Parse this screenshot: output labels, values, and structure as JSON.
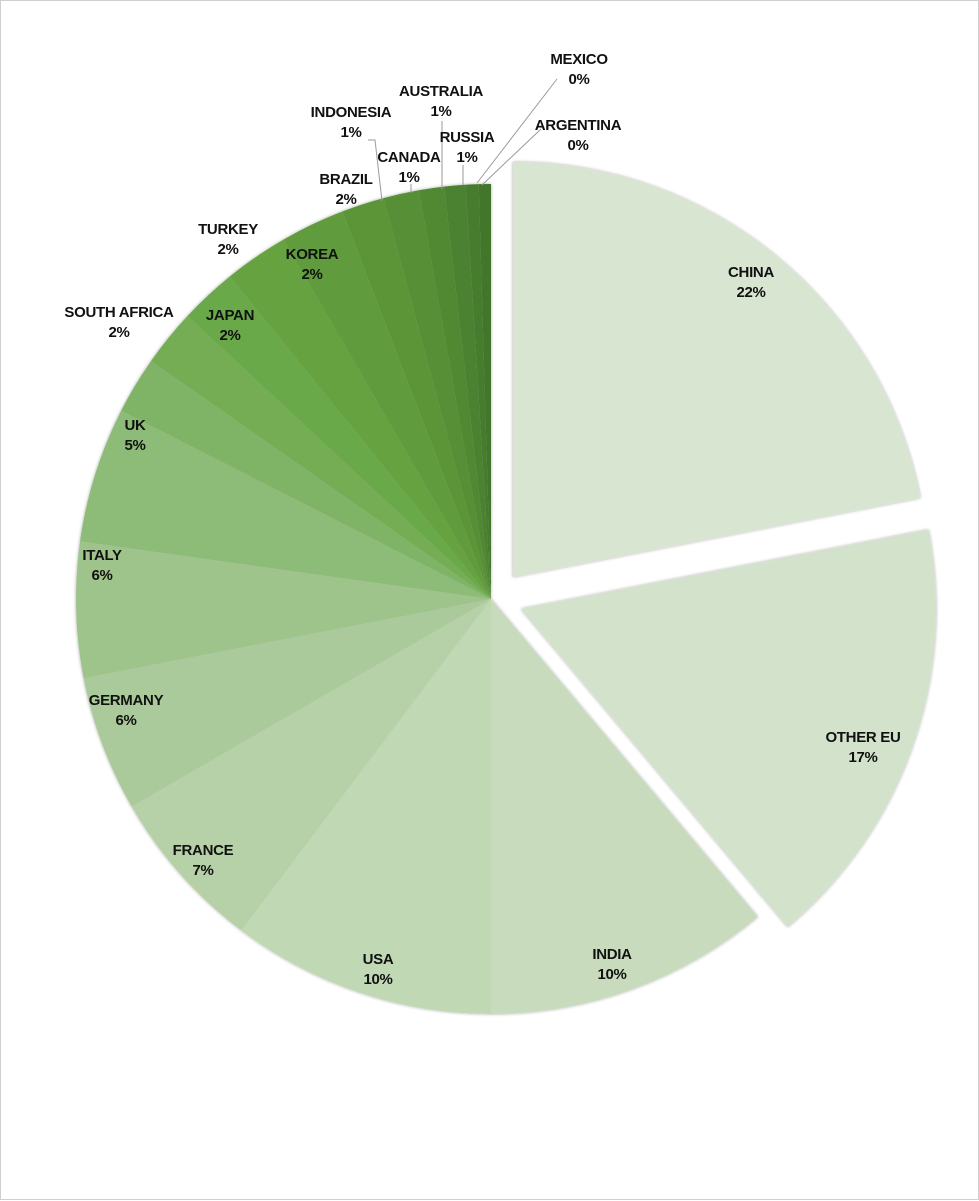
{
  "chart_data": {
    "type": "pie",
    "slices": [
      {
        "label": "CHINA",
        "value": 22,
        "value_label": "22%",
        "color": "#d8e5d1",
        "exploded": true
      },
      {
        "label": "OTHER EU",
        "value": 17,
        "value_label": "17%",
        "color": "#d3e2cb",
        "exploded": true
      },
      {
        "label": "INDIA",
        "value": 10,
        "value_label": "10%",
        "color": "#c8dcbd"
      },
      {
        "label": "USA",
        "value": 10,
        "value_label": "10%",
        "color": "#c0d8b4"
      },
      {
        "label": "FRANCE",
        "value": 7,
        "value_label": "7%",
        "color": "#b6d1a8"
      },
      {
        "label": "GERMANY",
        "value": 6,
        "value_label": "6%",
        "color": "#abca9b"
      },
      {
        "label": "ITALY",
        "value": 6,
        "value_label": "6%",
        "color": "#9ec48b"
      },
      {
        "label": "UK",
        "value": 5,
        "value_label": "5%",
        "color": "#8dbb78"
      },
      {
        "label": "SOUTH AFRICA",
        "value": 2,
        "value_label": "2%",
        "color": "#7fb466"
      },
      {
        "label": "JAPAN",
        "value": 2,
        "value_label": "2%",
        "color": "#74ad55"
      },
      {
        "label": "TURKEY",
        "value": 2,
        "value_label": "2%",
        "color": "#6aa948"
      },
      {
        "label": "KOREA",
        "value": 2,
        "value_label": "2%",
        "color": "#66a23f"
      },
      {
        "label": "BRAZIL",
        "value": 2,
        "value_label": "2%",
        "color": "#619c3c"
      },
      {
        "label": "INDONESIA",
        "value": 1,
        "value_label": "1%",
        "color": "#5c9539"
      },
      {
        "label": "CANADA",
        "value": 1,
        "value_label": "1%",
        "color": "#578f36"
      },
      {
        "label": "AUSTRALIA",
        "value": 1,
        "value_label": "1%",
        "color": "#518833"
      },
      {
        "label": "RUSSIA",
        "value": 1,
        "value_label": "1%",
        "color": "#4c8230"
      },
      {
        "label": "MEXICO",
        "value": 0,
        "value_label": "0%",
        "color": "#477c2d"
      },
      {
        "label": "ARGENTINA",
        "value": 0,
        "value_label": "0%",
        "color": "#42762a"
      }
    ]
  }
}
